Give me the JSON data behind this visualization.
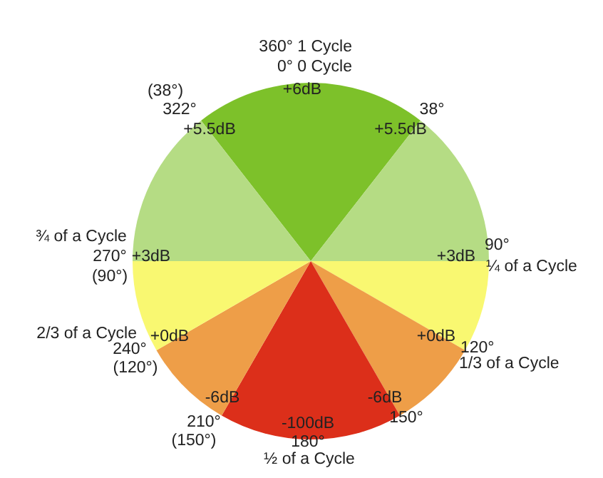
{
  "chart_data": {
    "type": "pie",
    "categories": [
      null,
      null,
      null,
      null,
      null,
      null,
      null,
      null
    ],
    "values": [
      21.11,
      14.45,
      8.33,
      8.33,
      16.67,
      8.33,
      8.33,
      14.45
    ],
    "colors": [
      "#7dc12a",
      "#b5dc84",
      "#f9f871",
      "#ee9e48",
      "#dc2f1a",
      "#ee9e48",
      "#f9f871",
      "#b5dc84"
    ],
    "annotations": [
      "360° 1 Cycle",
      "0° 0 Cycle",
      "+6dB",
      "(38°)",
      "322°",
      "+5.5dB",
      "38°",
      "+5.5dB",
      "¾ of a Cycle",
      "270°",
      "(90°)",
      "+3dB",
      "+3dB",
      "90°",
      "¼ of a Cycle",
      "2/3 of a Cycle",
      "240°",
      "(120°)",
      "+0dB",
      "+0dB",
      "120°",
      "1/3 of a Cycle",
      "-6dB",
      "-6dB",
      "150°",
      "210°",
      "(150°)",
      "-100dB",
      "180°",
      "½ of a Cycle"
    ]
  }
}
